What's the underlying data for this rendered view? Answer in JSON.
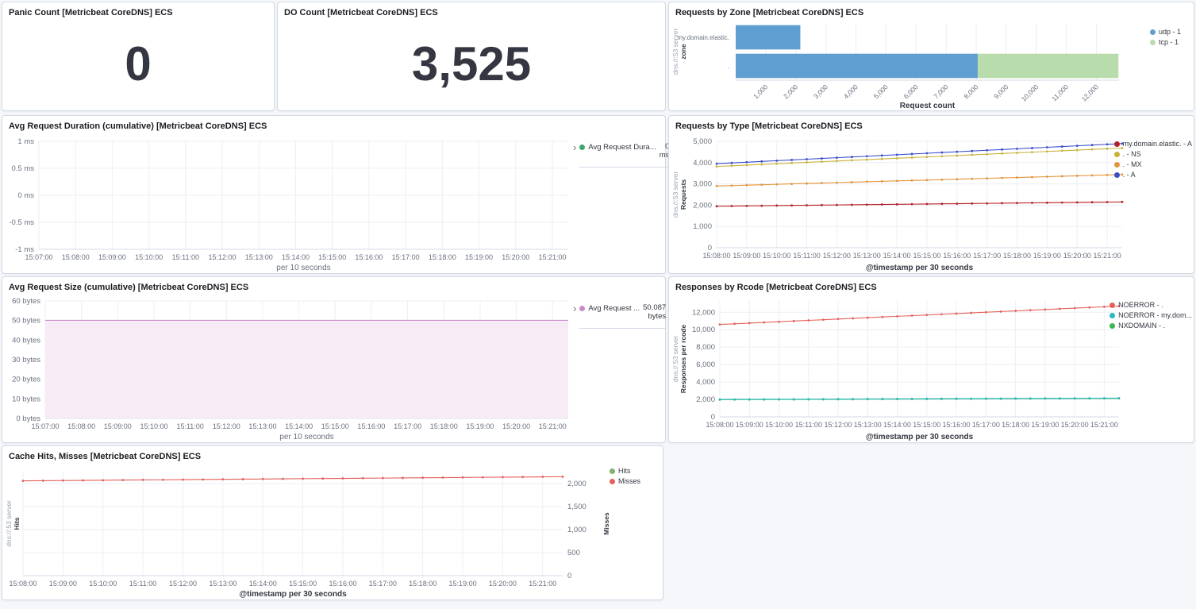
{
  "panels": {
    "panic": {
      "title": "Panic Count [Metricbeat CoreDNS] ECS",
      "value": "0"
    },
    "do_count": {
      "title": "DO Count [Metricbeat CoreDNS] ECS",
      "value": "3,525"
    },
    "zone": {
      "title": "Requests by Zone [Metricbeat CoreDNS] ECS"
    },
    "duration": {
      "title": "Avg Request Duration (cumulative) [Metricbeat CoreDNS] ECS"
    },
    "type": {
      "title": "Requests by Type [Metricbeat CoreDNS] ECS"
    },
    "size": {
      "title": "Avg Request Size (cumulative) [Metricbeat CoreDNS] ECS"
    },
    "rcode": {
      "title": "Responses by Rcode [Metricbeat CoreDNS] ECS"
    },
    "cache": {
      "title": "Cache Hits, Misses [Metricbeat CoreDNS] ECS"
    }
  },
  "chart_data": [
    {
      "id": "zone",
      "type": "bar",
      "orientation": "horizontal",
      "stacked": true,
      "title": "Requests by Zone [Metricbeat CoreDNS] ECS",
      "categories": [
        "my.domain.elastic.",
        "."
      ],
      "series": [
        {
          "name": "udp - 1",
          "color": "#5f9ed1",
          "values": [
            2150,
            8050
          ]
        },
        {
          "name": "tcp - 1",
          "color": "#b8dcab",
          "values": [
            0,
            4680
          ]
        }
      ],
      "xlim": [
        0,
        12750
      ],
      "xticks": [
        {
          "v": 1000,
          "l": "1,000"
        },
        {
          "v": 2000,
          "l": "2,000"
        },
        {
          "v": 3000,
          "l": "3,000"
        },
        {
          "v": 4000,
          "l": "4,000"
        },
        {
          "v": 5000,
          "l": "5,000"
        },
        {
          "v": 6000,
          "l": "6,000"
        },
        {
          "v": 7000,
          "l": "7,000"
        },
        {
          "v": 8000,
          "l": "8,000"
        },
        {
          "v": 9000,
          "l": "9,000"
        },
        {
          "v": 10000,
          "l": "10,000"
        },
        {
          "v": 11000,
          "l": "11,000"
        },
        {
          "v": 12000,
          "l": "12,000"
        }
      ],
      "xlabel": "Request count",
      "ylabel": {
        "regular": "dns://:53 server",
        "bold": "zone"
      },
      "legend_position": "right"
    },
    {
      "id": "duration",
      "type": "line",
      "title": "Avg Request Duration (cumulative) [Metricbeat CoreDNS] ECS",
      "x_ticks": [
        "15:07:00",
        "15:08:00",
        "15:09:00",
        "15:10:00",
        "15:11:00",
        "15:12:00",
        "15:13:00",
        "15:14:00",
        "15:15:00",
        "15:16:00",
        "15:17:00",
        "15:18:00",
        "15:19:00",
        "15:20:00",
        "15:21:00"
      ],
      "xlabel": "per 10 seconds",
      "ylim": [
        -1,
        1
      ],
      "yticks": [
        {
          "v": 1,
          "l": "1 ms"
        },
        {
          "v": 0.5,
          "l": "0.5 ms"
        },
        {
          "v": 0,
          "l": "0 ms"
        },
        {
          "v": -0.5,
          "l": "-0.5 ms"
        },
        {
          "v": -1,
          "l": "-1 ms"
        }
      ],
      "series": [
        {
          "name": "Avg Request Dura...",
          "color": "#3ea76b",
          "values": [],
          "legend_value": "0 ms"
        }
      ],
      "legend_position": "panel-right"
    },
    {
      "id": "type",
      "type": "line",
      "title": "Requests by Type [Metricbeat CoreDNS] ECS",
      "x_ticks": [
        "15:08:00",
        "15:09:00",
        "15:10:00",
        "15:11:00",
        "15:12:00",
        "15:13:00",
        "15:14:00",
        "15:15:00",
        "15:16:00",
        "15:17:00",
        "15:18:00",
        "15:19:00",
        "15:20:00",
        "15:21:00"
      ],
      "points_per_tick": 2,
      "xlabel": "@timestamp per 30 seconds",
      "xlabel_bold": true,
      "ylim": [
        0,
        5000
      ],
      "yticks": [
        {
          "v": 0,
          "l": "0"
        },
        {
          "v": 1000,
          "l": "1,000"
        },
        {
          "v": 2000,
          "l": "2,000"
        },
        {
          "v": 3000,
          "l": "3,000"
        },
        {
          "v": 4000,
          "l": "4,000"
        },
        {
          "v": 5000,
          "l": "5,000"
        }
      ],
      "ylabel": {
        "regular": "dns://:53 server",
        "bold": "Requests"
      },
      "series": [
        {
          "name": "my.domain.elastic. - A",
          "color": "#b42025",
          "values": [
            1950,
            1958,
            1965,
            1973,
            1980,
            1988,
            1995,
            2003,
            2010,
            2018,
            2025,
            2033,
            2040,
            2048,
            2055,
            2063,
            2070,
            2078,
            2085,
            2093,
            2100,
            2108,
            2115,
            2123,
            2130,
            2138,
            2145,
            2153
          ]
        },
        {
          "name": ". - NS",
          "color": "#c9b23c",
          "values": [
            3820,
            3852,
            3884,
            3916,
            3948,
            3980,
            4012,
            4044,
            4076,
            4108,
            4140,
            4172,
            4204,
            4236,
            4268,
            4300,
            4332,
            4364,
            4396,
            4428,
            4460,
            4492,
            4524,
            4556,
            4588,
            4620,
            4652,
            4684
          ]
        },
        {
          "name": ". - MX",
          "color": "#e1943c",
          "values": [
            2900,
            2920,
            2940,
            2960,
            2980,
            3000,
            3020,
            3040,
            3060,
            3080,
            3100,
            3120,
            3140,
            3160,
            3180,
            3200,
            3220,
            3240,
            3260,
            3280,
            3300,
            3320,
            3340,
            3360,
            3380,
            3400,
            3420,
            3440
          ]
        },
        {
          "name": ". - A",
          "color": "#3c4ec9",
          "values": [
            3950,
            3985,
            4020,
            4055,
            4090,
            4125,
            4160,
            4195,
            4230,
            4265,
            4300,
            4335,
            4370,
            4405,
            4440,
            4475,
            4510,
            4545,
            4580,
            4615,
            4650,
            4685,
            4720,
            4755,
            4790,
            4825,
            4860,
            4895
          ]
        }
      ],
      "legend_position": "right"
    },
    {
      "id": "size",
      "type": "line",
      "title": "Avg Request Size (cumulative) [Metricbeat CoreDNS] ECS",
      "x_ticks": [
        "15:07:00",
        "15:08:00",
        "15:09:00",
        "15:10:00",
        "15:11:00",
        "15:12:00",
        "15:13:00",
        "15:14:00",
        "15:15:00",
        "15:16:00",
        "15:17:00",
        "15:18:00",
        "15:19:00",
        "15:20:00",
        "15:21:00"
      ],
      "xlabel": "per 10 seconds",
      "ylim": [
        0,
        60
      ],
      "yticks": [
        {
          "v": 0,
          "l": "0 bytes"
        },
        {
          "v": 10,
          "l": "10 bytes"
        },
        {
          "v": 20,
          "l": "20 bytes"
        },
        {
          "v": 30,
          "l": "30 bytes"
        },
        {
          "v": 40,
          "l": "40 bytes"
        },
        {
          "v": 50,
          "l": "50 bytes"
        },
        {
          "v": 60,
          "l": "60 bytes"
        }
      ],
      "series": [
        {
          "name": "Avg Request ...",
          "color": "#ca8cc8",
          "fill": "#f7ecf6",
          "area": true,
          "markers": false,
          "values": [
            50.087,
            50.087
          ],
          "legend_value": "50.087 bytes"
        }
      ],
      "legend_position": "panel-right"
    },
    {
      "id": "rcode",
      "type": "line",
      "title": "Responses by Rcode [Metricbeat CoreDNS] ECS",
      "x_ticks": [
        "15:08:00",
        "15:09:00",
        "15:10:00",
        "15:11:00",
        "15:12:00",
        "15:13:00",
        "15:14:00",
        "15:15:00",
        "15:16:00",
        "15:17:00",
        "15:18:00",
        "15:19:00",
        "15:20:00",
        "15:21:00"
      ],
      "points_per_tick": 2,
      "xlabel": "@timestamp per 30 seconds",
      "xlabel_bold": true,
      "ylim": [
        0,
        13300
      ],
      "yticks": [
        {
          "v": 0,
          "l": "0"
        },
        {
          "v": 2000,
          "l": "2,000"
        },
        {
          "v": 4000,
          "l": "4,000"
        },
        {
          "v": 6000,
          "l": "6,000"
        },
        {
          "v": 8000,
          "l": "8,000"
        },
        {
          "v": 10000,
          "l": "10,000"
        },
        {
          "v": 12000,
          "l": "12,000"
        }
      ],
      "ylabel": {
        "regular": "dns://:53 server",
        "bold": "Responses per rcode"
      },
      "series": [
        {
          "name": "NOERROR - .",
          "color": "#e2635c",
          "values": [
            10600,
            10678,
            10756,
            10834,
            10912,
            10990,
            11068,
            11146,
            11224,
            11302,
            11380,
            11458,
            11536,
            11614,
            11692,
            11770,
            11848,
            11926,
            12004,
            12082,
            12160,
            12238,
            12316,
            12394,
            12472,
            12550,
            12628,
            12706
          ]
        },
        {
          "name": "NXDOMAIN - .",
          "color": "#3bb551",
          "values": [
            1970,
            1976,
            1981,
            1987,
            1992,
            1998,
            2003,
            2009,
            2014,
            2020,
            2026,
            2031,
            2037,
            2042,
            2048,
            2053,
            2059,
            2064,
            2070,
            2076,
            2081,
            2087,
            2092,
            2098,
            2103,
            2109,
            2114,
            2120
          ]
        },
        {
          "name": "NOERROR - my.dom...",
          "color": "#2cb8c0",
          "values": [
            2000,
            2006,
            2011,
            2017,
            2022,
            2028,
            2033,
            2039,
            2044,
            2050,
            2056,
            2061,
            2067,
            2072,
            2078,
            2083,
            2089,
            2094,
            2100,
            2106,
            2111,
            2117,
            2122,
            2128,
            2133,
            2139,
            2144,
            2150
          ]
        }
      ],
      "legend_order": [
        "NOERROR - .",
        "NOERROR - my.dom...",
        "NXDOMAIN - ."
      ],
      "legend_position": "right"
    },
    {
      "id": "cache",
      "type": "line",
      "title": "Cache Hits, Misses [Metricbeat CoreDNS] ECS",
      "x_ticks": [
        "15:08:00",
        "15:09:00",
        "15:10:00",
        "15:11:00",
        "15:12:00",
        "15:13:00",
        "15:14:00",
        "15:15:00",
        "15:16:00",
        "15:17:00",
        "15:18:00",
        "15:19:00",
        "15:20:00",
        "15:21:00"
      ],
      "points_per_tick": 2,
      "xlabel": "@timestamp per 30 seconds",
      "xlabel_bold": true,
      "ylim": [
        0,
        2260
      ],
      "yticks_right": [
        {
          "v": 0,
          "l": "0"
        },
        {
          "v": 500,
          "l": "500"
        },
        {
          "v": 1000,
          "l": "1,000"
        },
        {
          "v": 1500,
          "l": "1,500"
        },
        {
          "v": 2000,
          "l": "2,000"
        }
      ],
      "ylabel": {
        "regular": "dns://:53 server",
        "bold": "Hits"
      },
      "ylabel_right": {
        "bold": "Misses"
      },
      "series": [
        {
          "name": "Hits",
          "color": "#7eb26d",
          "values": []
        },
        {
          "name": "Misses",
          "color": "#e2605e",
          "values": [
            2060,
            2063,
            2067,
            2070,
            2073,
            2077,
            2080,
            2083,
            2087,
            2090,
            2093,
            2097,
            2100,
            2103,
            2107,
            2110,
            2113,
            2117,
            2120,
            2123,
            2127,
            2130,
            2133,
            2137,
            2140,
            2143,
            2147,
            2150
          ]
        }
      ],
      "legend_position": "right"
    }
  ]
}
